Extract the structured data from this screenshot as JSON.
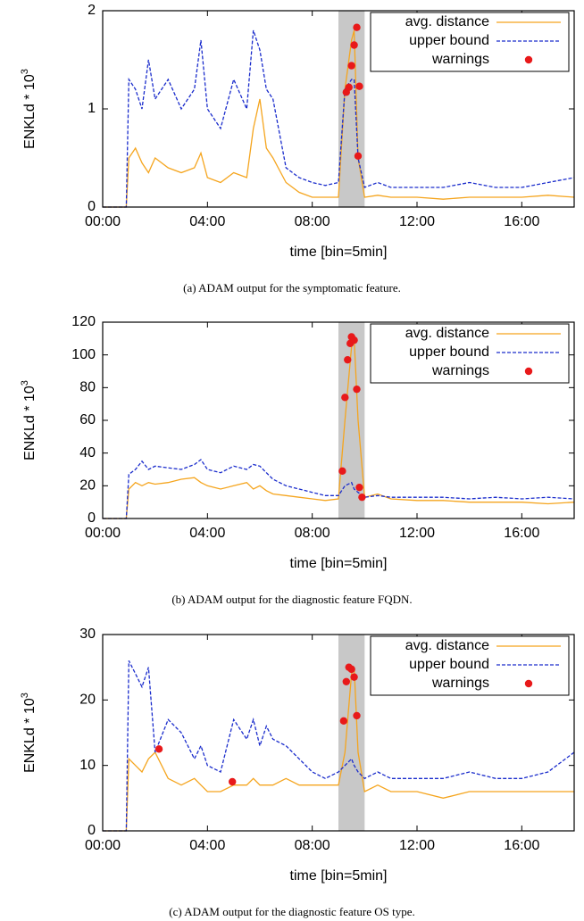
{
  "chart_data": [
    {
      "type": "line",
      "xlabel": "time [bin=5min]",
      "ylabel": "ENKLd * 10",
      "ylabel_sup": "3",
      "caption": "(a) ADAM output for the symptomatic feature.",
      "xlim": [
        0,
        18
      ],
      "ylim": [
        0,
        2
      ],
      "yticks": [
        0,
        1,
        2
      ],
      "xticks": [
        {
          "value": 0,
          "label": "00:00"
        },
        {
          "value": 4,
          "label": "04:00"
        },
        {
          "value": 8,
          "label": "08:00"
        },
        {
          "value": 12,
          "label": "12:00"
        },
        {
          "value": 16,
          "label": "16:00"
        }
      ],
      "shade": [
        9,
        10
      ],
      "legend": "top-right",
      "x": [
        0,
        0.5,
        0.9,
        1.0,
        1.25,
        1.5,
        1.75,
        2,
        2.5,
        3,
        3.5,
        3.75,
        4,
        4.5,
        5,
        5.5,
        5.75,
        6,
        6.25,
        6.5,
        7,
        7.5,
        8,
        8.5,
        9,
        9.25,
        9.5,
        9.6,
        9.75,
        10,
        10.5,
        11,
        12,
        13,
        14,
        15,
        16,
        17,
        18
      ],
      "series": [
        {
          "name": "avg. distance",
          "color": "#f5a51e",
          "dashed": false,
          "values": [
            0,
            0,
            0,
            0.5,
            0.6,
            0.45,
            0.35,
            0.5,
            0.4,
            0.35,
            0.4,
            0.55,
            0.3,
            0.25,
            0.35,
            0.3,
            0.8,
            1.1,
            0.6,
            0.5,
            0.25,
            0.15,
            0.1,
            0.1,
            0.1,
            1.2,
            1.7,
            1.8,
            0.5,
            0.1,
            0.12,
            0.1,
            0.1,
            0.08,
            0.1,
            0.1,
            0.1,
            0.12,
            0.1
          ]
        },
        {
          "name": "upper bound",
          "color": "#1a2ccc",
          "dashed": true,
          "values": [
            0,
            0,
            0,
            1.3,
            1.2,
            1.0,
            1.5,
            1.1,
            1.3,
            1.0,
            1.2,
            1.7,
            1.0,
            0.8,
            1.3,
            1.0,
            1.8,
            1.6,
            1.2,
            1.1,
            0.4,
            0.3,
            0.25,
            0.22,
            0.25,
            1.2,
            1.3,
            1.3,
            0.5,
            0.2,
            0.25,
            0.2,
            0.2,
            0.2,
            0.25,
            0.2,
            0.2,
            0.25,
            0.3
          ]
        },
        {
          "name": "warnings",
          "color": "#e8191a",
          "type": "scatter",
          "x": [
            9.3,
            9.4,
            9.5,
            9.6,
            9.7,
            9.8,
            9.75
          ],
          "values": [
            1.17,
            1.22,
            1.44,
            1.65,
            1.83,
            1.23,
            0.52
          ]
        }
      ]
    },
    {
      "type": "line",
      "xlabel": "time [bin=5min]",
      "ylabel": "ENKLd * 10",
      "ylabel_sup": "3",
      "caption": "(b) ADAM output for the diagnostic feature FQDN.",
      "xlim": [
        0,
        18
      ],
      "ylim": [
        0,
        120
      ],
      "yticks": [
        0,
        20,
        40,
        60,
        80,
        100,
        120
      ],
      "xticks": [
        {
          "value": 0,
          "label": "00:00"
        },
        {
          "value": 4,
          "label": "04:00"
        },
        {
          "value": 8,
          "label": "08:00"
        },
        {
          "value": 12,
          "label": "12:00"
        },
        {
          "value": 16,
          "label": "16:00"
        }
      ],
      "shade": [
        9,
        10
      ],
      "legend": "top-right",
      "x": [
        0,
        0.5,
        0.9,
        1.0,
        1.25,
        1.5,
        1.75,
        2,
        2.5,
        3,
        3.5,
        3.75,
        4,
        4.5,
        5,
        5.5,
        5.75,
        6,
        6.25,
        6.5,
        7,
        7.5,
        8,
        8.5,
        9,
        9.25,
        9.5,
        9.6,
        9.75,
        10,
        10.5,
        11,
        12,
        13,
        14,
        15,
        16,
        17,
        18
      ],
      "series": [
        {
          "name": "avg. distance",
          "color": "#f5a51e",
          "dashed": false,
          "values": [
            0,
            0,
            0,
            18,
            22,
            20,
            22,
            21,
            22,
            24,
            25,
            22,
            20,
            18,
            20,
            22,
            18,
            20,
            17,
            15,
            14,
            13,
            12,
            11,
            12,
            60,
            105,
            110,
            60,
            13,
            15,
            12,
            11,
            11,
            10,
            10,
            10,
            9,
            10
          ]
        },
        {
          "name": "upper bound",
          "color": "#1a2ccc",
          "dashed": true,
          "values": [
            0,
            0,
            0,
            27,
            30,
            35,
            30,
            32,
            31,
            30,
            33,
            36,
            30,
            28,
            32,
            30,
            33,
            32,
            28,
            24,
            20,
            18,
            16,
            14,
            14,
            20,
            22,
            18,
            16,
            13,
            14,
            13,
            13,
            13,
            12,
            13,
            12,
            13,
            12
          ]
        },
        {
          "name": "warnings",
          "color": "#e8191a",
          "type": "scatter",
          "x": [
            9.15,
            9.25,
            9.35,
            9.45,
            9.5,
            9.6,
            9.7,
            9.8,
            9.9
          ],
          "values": [
            29,
            74,
            97,
            107,
            111,
            109,
            79,
            19,
            13
          ]
        }
      ]
    },
    {
      "type": "line",
      "xlabel": "time [bin=5min]",
      "ylabel": "ENKLd * 10",
      "ylabel_sup": "3",
      "caption": "(c) ADAM output for the diagnostic feature OS type.",
      "xlim": [
        0,
        18
      ],
      "ylim": [
        0,
        30
      ],
      "yticks": [
        0,
        10,
        20,
        30
      ],
      "xticks": [
        {
          "value": 0,
          "label": "00:00"
        },
        {
          "value": 4,
          "label": "04:00"
        },
        {
          "value": 8,
          "label": "08:00"
        },
        {
          "value": 12,
          "label": "12:00"
        },
        {
          "value": 16,
          "label": "16:00"
        }
      ],
      "shade": [
        9,
        10
      ],
      "legend": "top-right",
      "x": [
        0,
        0.5,
        0.9,
        1.0,
        1.25,
        1.5,
        1.75,
        2,
        2.5,
        3,
        3.5,
        3.75,
        4,
        4.5,
        5,
        5.5,
        5.75,
        6,
        6.25,
        6.5,
        7,
        7.5,
        8,
        8.5,
        9,
        9.25,
        9.5,
        9.6,
        9.75,
        10,
        10.5,
        11,
        12,
        13,
        14,
        15,
        16,
        17,
        18
      ],
      "series": [
        {
          "name": "avg. distance",
          "color": "#f5a51e",
          "dashed": false,
          "values": [
            0,
            0,
            0,
            11,
            10,
            9,
            11,
            12,
            8,
            7,
            8,
            7,
            6,
            6,
            7,
            7,
            8,
            7,
            7,
            7,
            8,
            7,
            7,
            7,
            7,
            12,
            24,
            25,
            12,
            6,
            7,
            6,
            6,
            5,
            6,
            6,
            6,
            6,
            6
          ]
        },
        {
          "name": "upper bound",
          "color": "#1a2ccc",
          "dashed": true,
          "values": [
            0,
            0,
            0,
            26,
            24,
            22,
            25,
            12,
            17,
            15,
            11,
            13,
            10,
            9,
            17,
            14,
            17,
            13,
            16,
            14,
            13,
            11,
            9,
            8,
            9,
            10,
            11,
            10,
            9,
            8,
            9,
            8,
            8,
            8,
            9,
            8,
            8,
            9,
            12
          ]
        },
        {
          "name": "warnings",
          "color": "#e8191a",
          "type": "scatter",
          "x": [
            2.15,
            4.95,
            9.2,
            9.3,
            9.4,
            9.5,
            9.6,
            9.7
          ],
          "values": [
            12.5,
            7.5,
            16.8,
            22.8,
            25,
            24.7,
            23.5,
            17.6
          ]
        }
      ]
    }
  ]
}
